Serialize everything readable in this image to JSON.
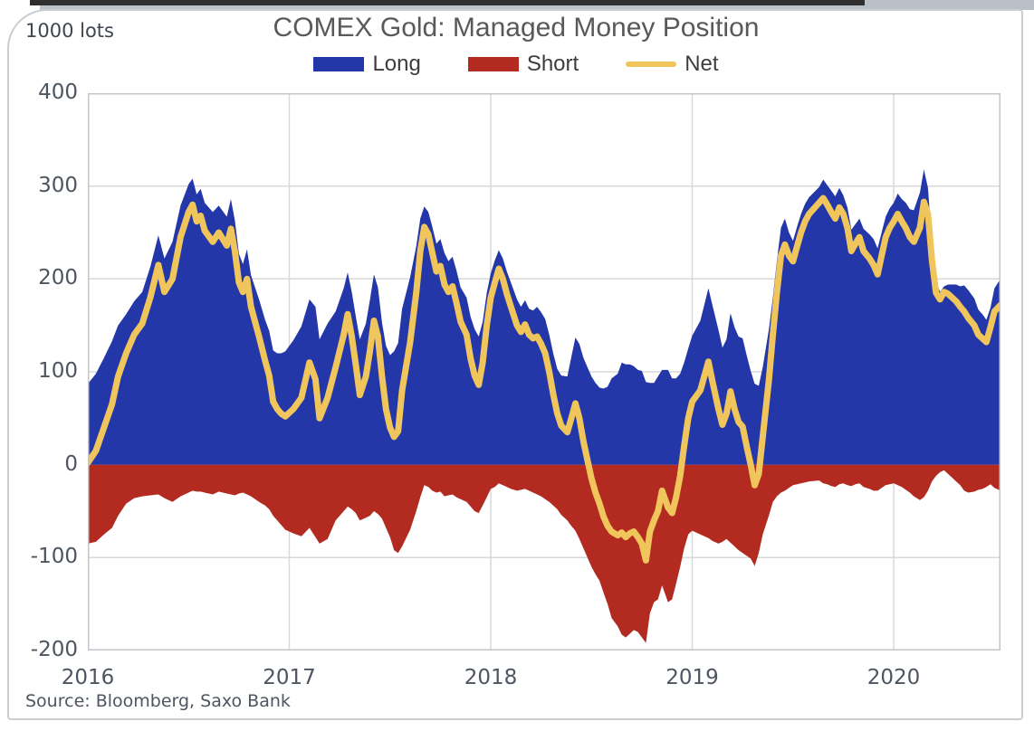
{
  "window": {
    "top_bar_light_color": "#b9c0c7",
    "top_bar_dark_color": "#2e2e2e",
    "card_border_color": "#c9ced3"
  },
  "header": {
    "units_label": "1000 lots",
    "title": "COMEX Gold: Managed Money Position"
  },
  "legend": {
    "items": [
      {
        "label": "Long",
        "marker": "area",
        "color": "#2337a8"
      },
      {
        "label": "Short",
        "marker": "area",
        "color": "#b22a20"
      },
      {
        "label": "Net",
        "marker": "line",
        "color": "#f0c65c"
      }
    ]
  },
  "footer": {
    "source_text": "Source: Bloomberg, Saxo Bank"
  },
  "chart_data": {
    "type": "area",
    "title": "COMEX Gold: Managed Money Position",
    "units": "1000 lots",
    "xlim": [
      2016.0,
      2020.53
    ],
    "ylim": [
      -200,
      400
    ],
    "x_ticks": [
      2016,
      2017,
      2018,
      2019,
      2020
    ],
    "y_ticks": [
      400,
      300,
      200,
      100,
      0,
      -100,
      -200
    ],
    "grid": true,
    "legend_position": "top-center",
    "colors": {
      "grid": "#d9d9d9",
      "plot_border": "#c0c6cc",
      "axis_text": "#4d5560"
    },
    "x": [
      2016.0,
      2016.04,
      2016.08,
      2016.12,
      2016.15,
      2016.19,
      2016.23,
      2016.27,
      2016.31,
      2016.35,
      2016.38,
      2016.42,
      2016.46,
      2016.5,
      2016.52,
      2016.54,
      2016.56,
      2016.58,
      2016.62,
      2016.65,
      2016.69,
      2016.71,
      2016.73,
      2016.75,
      2016.77,
      2016.79,
      2016.81,
      2016.85,
      2016.88,
      2016.9,
      2016.92,
      2016.94,
      2016.96,
      2016.98,
      2017.02,
      2017.06,
      2017.1,
      2017.13,
      2017.15,
      2017.19,
      2017.23,
      2017.27,
      2017.29,
      2017.31,
      2017.33,
      2017.35,
      2017.38,
      2017.4,
      2017.42,
      2017.44,
      2017.46,
      2017.48,
      2017.5,
      2017.52,
      2017.54,
      2017.56,
      2017.6,
      2017.63,
      2017.65,
      2017.67,
      2017.69,
      2017.71,
      2017.73,
      2017.75,
      2017.77,
      2017.79,
      2017.81,
      2017.83,
      2017.85,
      2017.88,
      2017.9,
      2017.92,
      2017.94,
      2017.96,
      2017.98,
      2018.0,
      2018.02,
      2018.04,
      2018.06,
      2018.08,
      2018.1,
      2018.13,
      2018.15,
      2018.17,
      2018.19,
      2018.21,
      2018.23,
      2018.25,
      2018.27,
      2018.29,
      2018.31,
      2018.33,
      2018.35,
      2018.38,
      2018.4,
      2018.42,
      2018.44,
      2018.46,
      2018.48,
      2018.5,
      2018.52,
      2018.54,
      2018.56,
      2018.58,
      2018.6,
      2018.63,
      2018.65,
      2018.67,
      2018.69,
      2018.71,
      2018.73,
      2018.75,
      2018.77,
      2018.79,
      2018.81,
      2018.83,
      2018.85,
      2018.88,
      2018.9,
      2018.92,
      2018.94,
      2018.96,
      2018.98,
      2019.0,
      2019.04,
      2019.08,
      2019.1,
      2019.13,
      2019.15,
      2019.17,
      2019.19,
      2019.21,
      2019.23,
      2019.25,
      2019.27,
      2019.29,
      2019.31,
      2019.33,
      2019.35,
      2019.38,
      2019.4,
      2019.42,
      2019.44,
      2019.46,
      2019.48,
      2019.5,
      2019.52,
      2019.54,
      2019.56,
      2019.58,
      2019.63,
      2019.65,
      2019.67,
      2019.69,
      2019.71,
      2019.73,
      2019.75,
      2019.77,
      2019.79,
      2019.81,
      2019.83,
      2019.85,
      2019.88,
      2019.9,
      2019.92,
      2019.94,
      2019.96,
      2019.98,
      2020.0,
      2020.02,
      2020.04,
      2020.06,
      2020.08,
      2020.1,
      2020.13,
      2020.15,
      2020.17,
      2020.19,
      2020.21,
      2020.23,
      2020.25,
      2020.27,
      2020.29,
      2020.31,
      2020.33,
      2020.35,
      2020.37,
      2020.4,
      2020.42,
      2020.44,
      2020.46,
      2020.48,
      2020.5,
      2020.53
    ],
    "series": [
      {
        "name": "Long",
        "type": "area",
        "color": "#2337a8",
        "values": [
          87,
          98,
          115,
          133,
          150,
          162,
          176,
          186,
          213,
          247,
          222,
          240,
          279,
          302,
          308,
          291,
          297,
          282,
          272,
          279,
          267,
          286,
          263,
          227,
          216,
          232,
          204,
          178,
          156,
          144,
          123,
          120,
          120,
          122,
          134,
          149,
          178,
          170,
          135,
          152,
          165,
          190,
          207,
          186,
          160,
          135,
          152,
          177,
          205,
          191,
          153,
          128,
          118,
          122,
          131,
          168,
          202,
          235,
          265,
          278,
          272,
          256,
          238,
          243,
          228,
          219,
          224,
          209,
          191,
          180,
          159,
          146,
          138,
          154,
          185,
          206,
          220,
          231,
          222,
          208,
          196,
          178,
          170,
          177,
          168,
          166,
          170,
          164,
          157,
          140,
          120,
          103,
          96,
          95,
          116,
          137,
          130,
          115,
          105,
          95,
          88,
          83,
          82,
          84,
          93,
          98,
          110,
          108,
          108,
          106,
          102,
          101,
          89,
          88,
          88,
          95,
          102,
          102,
          93,
          93,
          98,
          110,
          125,
          139,
          155,
          190,
          172,
          145,
          126,
          135,
          163,
          148,
          138,
          136,
          118,
          101,
          87,
          85,
          105,
          145,
          180,
          219,
          255,
          265,
          250,
          241,
          256,
          270,
          281,
          288,
          299,
          307,
          301,
          295,
          289,
          298,
          290,
          277,
          253,
          259,
          265,
          254,
          248,
          243,
          233,
          250,
          267,
          276,
          282,
          292,
          286,
          282,
          275,
          274,
          293,
          318,
          298,
          238,
          197,
          186,
          192,
          194,
          194,
          194,
          192,
          193,
          188,
          179,
          167,
          162,
          156,
          169,
          190,
          200
        ]
      },
      {
        "name": "Short",
        "type": "area",
        "color": "#b22a20",
        "values": [
          -85,
          -83,
          -75,
          -68,
          -55,
          -42,
          -36,
          -34,
          -33,
          -32,
          -36,
          -40,
          -34,
          -30,
          -28,
          -29,
          -29,
          -30,
          -32,
          -29,
          -31,
          -32,
          -33,
          -31,
          -30,
          -32,
          -34,
          -40,
          -44,
          -48,
          -55,
          -60,
          -65,
          -70,
          -74,
          -77,
          -68,
          -78,
          -85,
          -80,
          -60,
          -50,
          -45,
          -48,
          -52,
          -60,
          -57,
          -55,
          -50,
          -53,
          -58,
          -68,
          -78,
          -92,
          -95,
          -88,
          -70,
          -50,
          -35,
          -22,
          -24,
          -28,
          -30,
          -29,
          -34,
          -33,
          -32,
          -35,
          -37,
          -40,
          -45,
          -50,
          -52,
          -44,
          -35,
          -26,
          -24,
          -20,
          -22,
          -24,
          -26,
          -28,
          -27,
          -26,
          -28,
          -30,
          -32,
          -34,
          -37,
          -40,
          -44,
          -48,
          -54,
          -60,
          -66,
          -71,
          -80,
          -90,
          -100,
          -110,
          -118,
          -125,
          -138,
          -150,
          -165,
          -174,
          -183,
          -186,
          -182,
          -178,
          -180,
          -186,
          -192,
          -160,
          -148,
          -145,
          -130,
          -148,
          -145,
          -128,
          -110,
          -90,
          -75,
          -71,
          -75,
          -79,
          -82,
          -85,
          -83,
          -80,
          -84,
          -88,
          -92,
          -95,
          -98,
          -101,
          -109,
          -95,
          -75,
          -55,
          -40,
          -34,
          -30,
          -28,
          -25,
          -22,
          -21,
          -20,
          -19,
          -18,
          -17,
          -20,
          -21,
          -23,
          -24,
          -21,
          -20,
          -22,
          -23,
          -21,
          -20,
          -24,
          -26,
          -28,
          -28,
          -25,
          -22,
          -21,
          -20,
          -22,
          -24,
          -27,
          -30,
          -34,
          -38,
          -35,
          -28,
          -18,
          -12,
          -8,
          -6,
          -10,
          -14,
          -18,
          -22,
          -28,
          -30,
          -29,
          -27,
          -26,
          -24,
          -21,
          -25,
          -28
        ]
      },
      {
        "name": "Net",
        "type": "line",
        "color": "#f0c65c",
        "values": [
          2,
          15,
          40,
          65,
          95,
          120,
          140,
          152,
          180,
          215,
          186,
          200,
          245,
          272,
          280,
          262,
          268,
          252,
          240,
          250,
          236,
          254,
          230,
          196,
          186,
          200,
          170,
          138,
          112,
          96,
          68,
          60,
          55,
          52,
          60,
          72,
          110,
          92,
          50,
          72,
          105,
          140,
          162,
          138,
          108,
          75,
          95,
          122,
          155,
          138,
          95,
          60,
          40,
          30,
          36,
          80,
          132,
          185,
          230,
          256,
          248,
          228,
          208,
          214,
          194,
          186,
          192,
          174,
          154,
          140,
          114,
          96,
          86,
          110,
          150,
          180,
          196,
          211,
          200,
          184,
          170,
          150,
          143,
          151,
          140,
          136,
          138,
          130,
          120,
          100,
          76,
          55,
          42,
          35,
          50,
          66,
          50,
          25,
          5,
          -15,
          -30,
          -42,
          -56,
          -66,
          -72,
          -76,
          -73,
          -78,
          -74,
          -72,
          -78,
          -85,
          -103,
          -72,
          -60,
          -50,
          -28,
          -46,
          -52,
          -35,
          -12,
          20,
          50,
          68,
          80,
          111,
          90,
          60,
          43,
          55,
          79,
          60,
          46,
          41,
          20,
          0,
          -22,
          -10,
          30,
          90,
          140,
          185,
          225,
          237,
          225,
          219,
          235,
          250,
          262,
          270,
          282,
          287,
          280,
          272,
          265,
          277,
          270,
          255,
          230,
          238,
          245,
          230,
          222,
          215,
          205,
          225,
          245,
          255,
          262,
          270,
          262,
          255,
          245,
          240,
          255,
          283,
          270,
          220,
          185,
          178,
          186,
          184,
          180,
          176,
          170,
          165,
          158,
          150,
          140,
          136,
          132,
          148,
          165,
          172
        ]
      }
    ]
  }
}
